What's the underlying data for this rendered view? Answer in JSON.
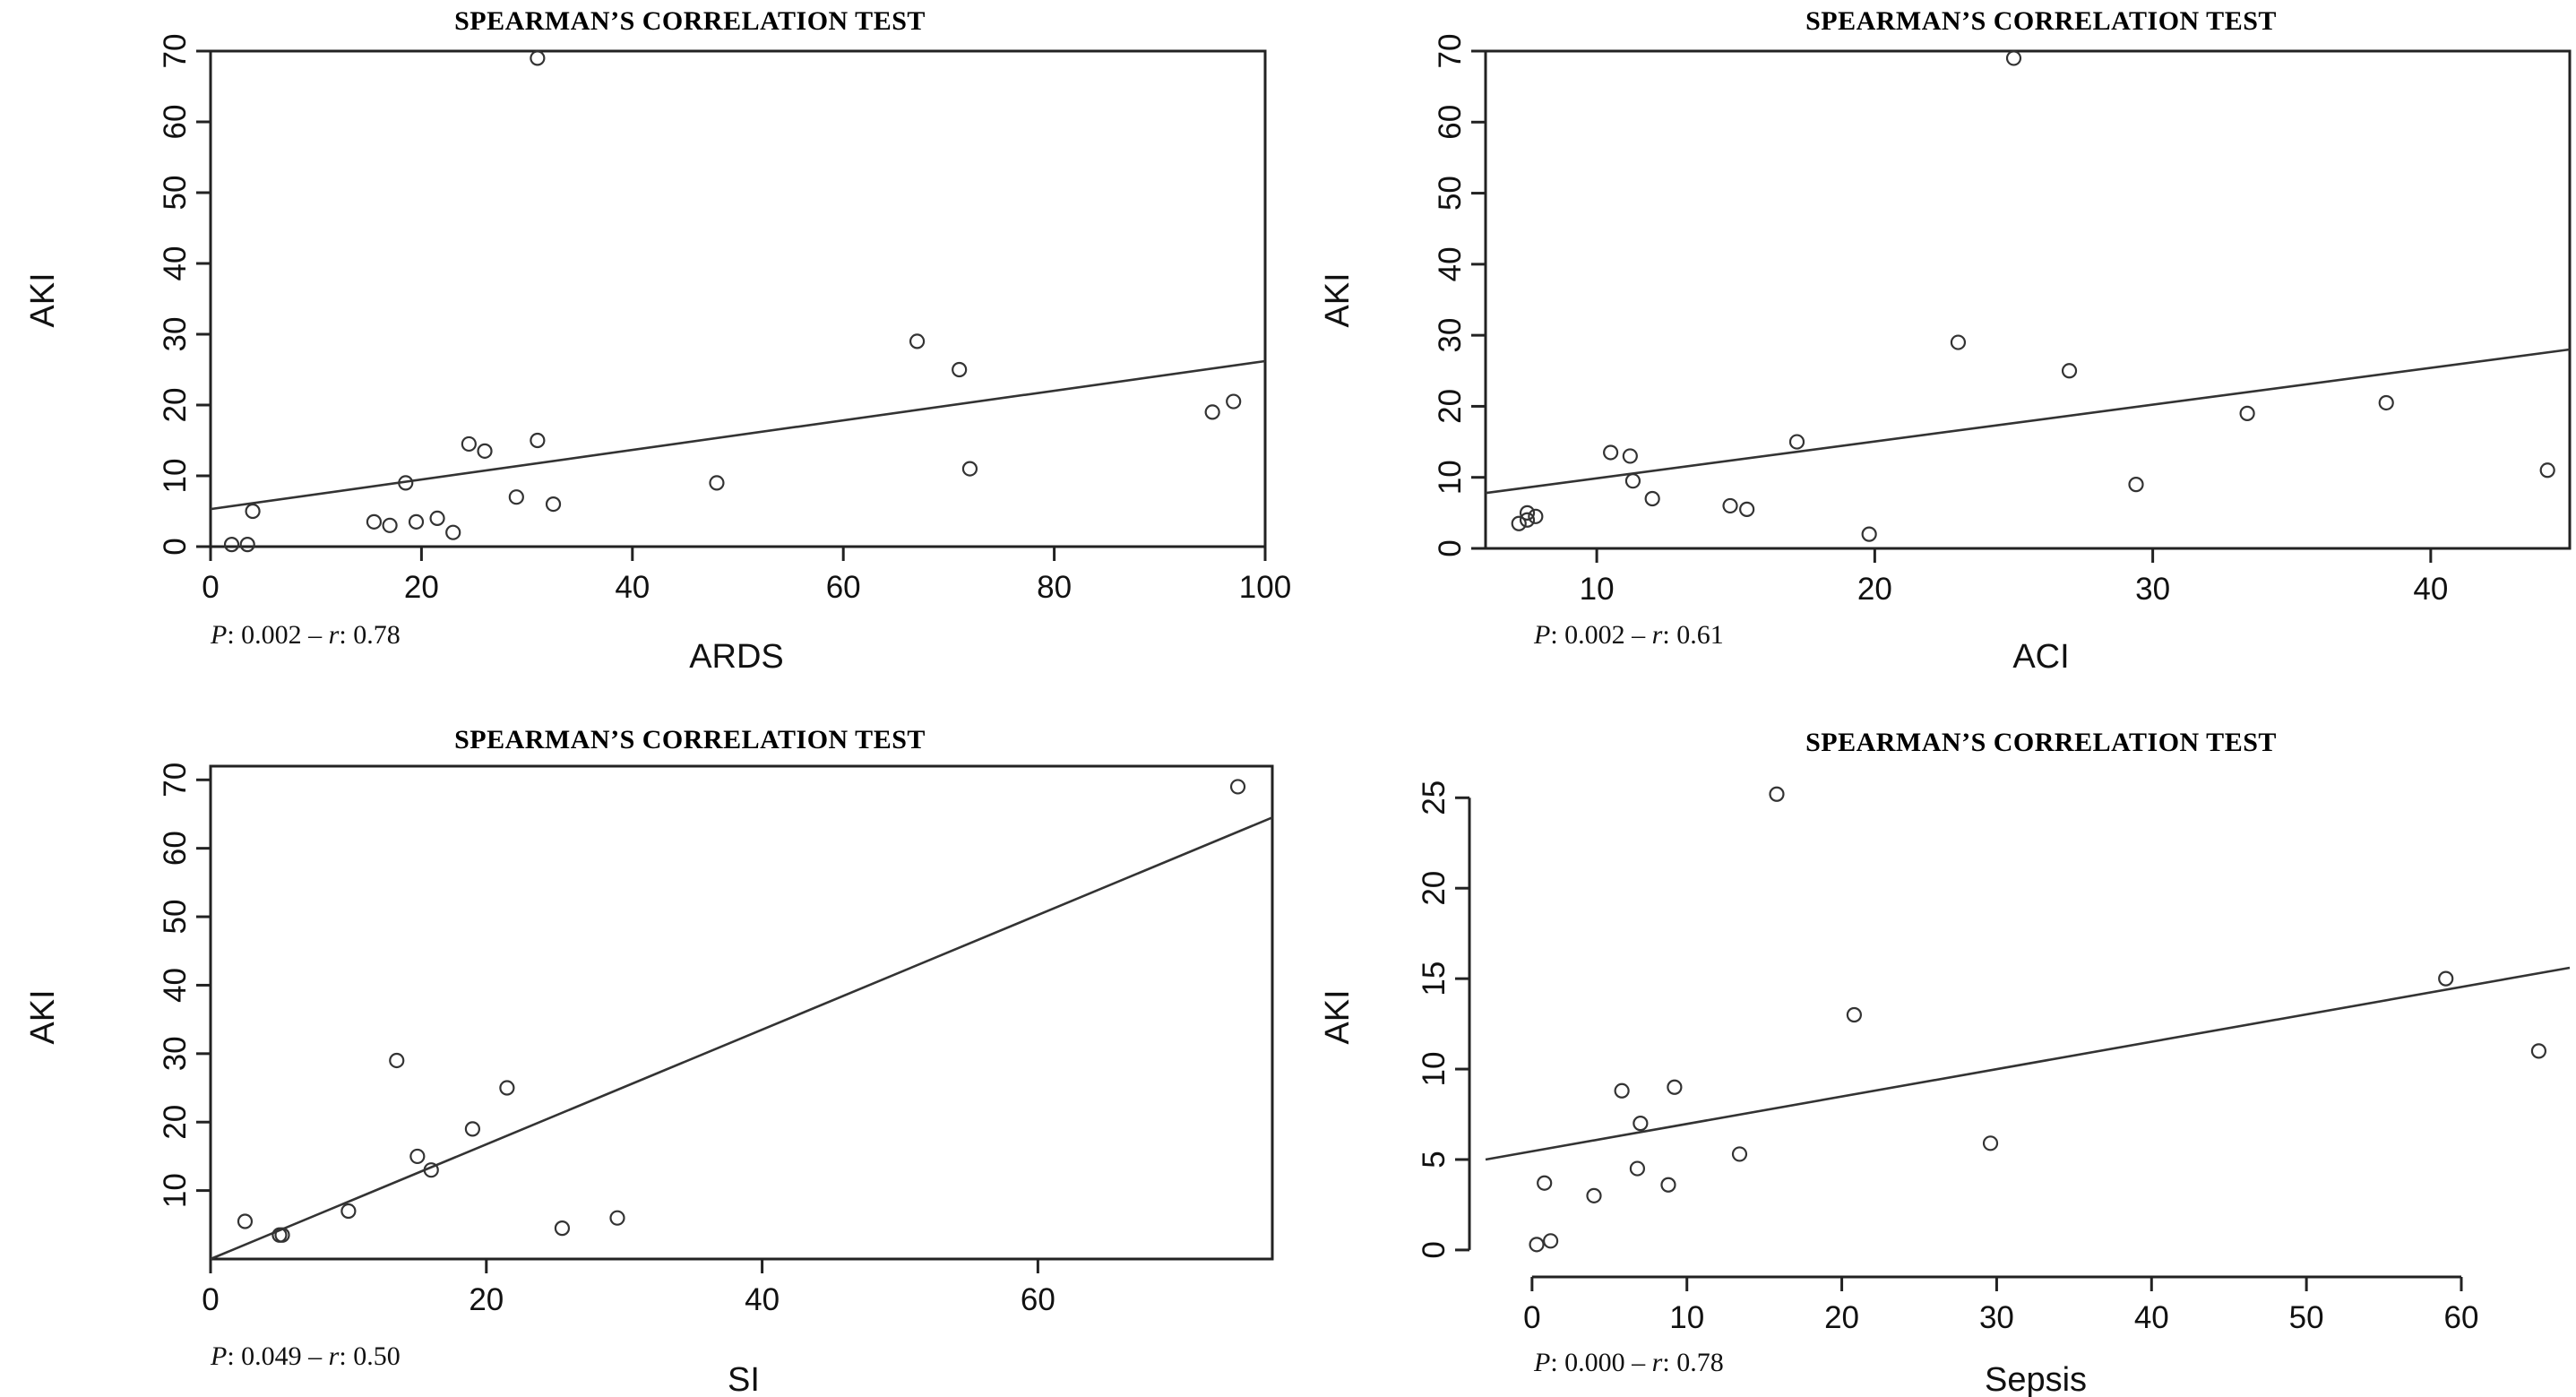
{
  "chart_data": [
    {
      "type": "scatter",
      "title": "SPEARMAN’S CORRELATION TEST",
      "xlabel": "ARDS",
      "ylabel": "AKI",
      "stats": {
        "p_label": "P",
        "p_value": "0.002",
        "separator": "–",
        "r_label": "r",
        "r_value": "0.78"
      },
      "xlim": [
        0,
        100
      ],
      "ylim": [
        0,
        70
      ],
      "xticks": [
        0,
        20,
        40,
        60,
        80,
        100
      ],
      "yticks": [
        0,
        10,
        20,
        30,
        40,
        50,
        60,
        70
      ],
      "x": [
        2,
        3.5,
        4,
        15.5,
        17,
        18.5,
        19.5,
        21.5,
        23,
        24.5,
        26,
        29,
        31,
        31,
        32.5,
        48,
        67,
        71,
        72,
        95,
        97
      ],
      "y": [
        0.3,
        0.3,
        5,
        3.5,
        3,
        9,
        3.5,
        4,
        2,
        14.5,
        13.5,
        7,
        15,
        69,
        6,
        9,
        29,
        25,
        11,
        19,
        20.5
      ],
      "fit_line": {
        "x": [
          0,
          100
        ],
        "y": [
          5.3,
          26.2
        ]
      }
    },
    {
      "type": "scatter",
      "title": "SPEARMAN’S CORRELATION TEST",
      "xlabel": "ACI",
      "ylabel": "AKI",
      "stats": {
        "p_label": "P",
        "p_value": "0.002",
        "separator": "–",
        "r_label": "r",
        "r_value": "0.61"
      },
      "xlim": [
        6,
        45
      ],
      "ylim": [
        0,
        70
      ],
      "xticks": [
        10,
        20,
        30,
        40
      ],
      "yticks": [
        0,
        10,
        20,
        30,
        40,
        50,
        60,
        70
      ],
      "x": [
        7.2,
        7.5,
        7.8,
        7.5,
        10.5,
        11.2,
        11.3,
        12,
        14.8,
        15.4,
        17.2,
        19.8,
        23,
        25,
        27,
        29.4,
        33.4,
        38.4,
        44.2
      ],
      "y": [
        3.5,
        4,
        4.5,
        5,
        13.5,
        13,
        9.5,
        7,
        6,
        5.5,
        15,
        2,
        29,
        69,
        25,
        9,
        19,
        20.5,
        11
      ],
      "fit_line": {
        "x": [
          6,
          45
        ],
        "y": [
          7.8,
          28
        ]
      }
    },
    {
      "type": "scatter",
      "title": "SPEARMAN’S CORRELATION TEST",
      "xlabel": "SI",
      "ylabel": "AKI",
      "stats": {
        "p_label": "P",
        "p_value": "0.049",
        "separator": "–",
        "r_label": "r",
        "r_value": "0.50"
      },
      "xlim": [
        0,
        77
      ],
      "ylim": [
        0,
        72
      ],
      "xticks": [
        0,
        20,
        40,
        60
      ],
      "yticks": [
        10,
        20,
        30,
        40,
        50,
        60,
        70
      ],
      "x": [
        2.5,
        5,
        5.2,
        10,
        13.5,
        15,
        16,
        19,
        21.5,
        25.5,
        29.5,
        74.5
      ],
      "y": [
        5.5,
        3.5,
        3.5,
        7,
        29,
        15,
        13,
        19,
        25,
        4.5,
        6,
        69
      ],
      "fit_line": {
        "x": [
          0,
          77
        ],
        "y": [
          0,
          64.5
        ]
      }
    },
    {
      "type": "scatter",
      "title": "SPEARMAN’S CORRELATION TEST",
      "xlabel": "Sepsis",
      "ylabel": "AKI",
      "stats": {
        "p_label": "P",
        "p_value": "0.000",
        "separator": "–",
        "r_label": "r",
        "r_value": "0.78"
      },
      "xlim": [
        -3,
        67
      ],
      "ylim": [
        -0.5,
        26.5
      ],
      "xticks": [
        0,
        10,
        20,
        30,
        40,
        50,
        60
      ],
      "yticks": [
        0,
        5,
        10,
        15,
        20,
        25
      ],
      "x": [
        0.3,
        1.2,
        0.8,
        4,
        5.8,
        6.8,
        7,
        8.8,
        9.2,
        13.4,
        15.8,
        20.8,
        29.6,
        59,
        65
      ],
      "y": [
        0.3,
        0.5,
        3.7,
        3,
        8.8,
        4.5,
        7,
        3.6,
        9,
        5.3,
        25.2,
        13,
        5.9,
        15,
        11
      ],
      "fit_line": {
        "x": [
          -3,
          67
        ],
        "y": [
          5,
          15.6
        ]
      }
    }
  ]
}
